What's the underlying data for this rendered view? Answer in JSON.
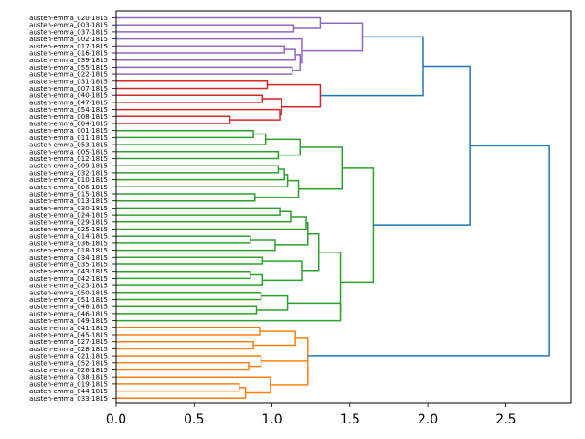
{
  "chart_data": {
    "type": "dendrogram",
    "orientation": "left",
    "title": "",
    "xlabel": "",
    "ylabel": "",
    "xlim": [
      0,
      2.92
    ],
    "xticks": [
      0.0,
      0.5,
      1.0,
      1.5,
      2.0,
      2.5
    ],
    "xtick_labels": [
      "0.0",
      "0.5",
      "1.0",
      "1.5",
      "2.0",
      "2.5"
    ],
    "colors": {
      "purple": "#9467bd",
      "red": "#d62728",
      "green": "#2ca02c",
      "orange": "#ff7f0e",
      "blue": "#1f77b4"
    },
    "leaves": [
      "austen-emma_020-1815",
      "austen-emma_003-1815",
      "austen-emma_037-1815",
      "austen-emma_002-1815",
      "austen-emma_017-1815",
      "austen-emma_016-1815",
      "austen-emma_039-1815",
      "austen-emma_055-1815",
      "austen-emma_022-1815",
      "austen-emma_031-1815",
      "austen-emma_007-1815",
      "austen-emma_040-1815",
      "austen-emma_047-1815",
      "austen-emma_054-1815",
      "austen-emma_008-1815",
      "austen-emma_004-1815",
      "austen-emma_001-1815",
      "austen-emma_011-1815",
      "austen-emma_053-1815",
      "austen-emma_005-1815",
      "austen-emma_012-1815",
      "austen-emma_009-1815",
      "austen-emma_032-1815",
      "austen-emma_010-1815",
      "austen-emma_006-1815",
      "austen-emma_015-1815",
      "austen-emma_013-1815",
      "austen-emma_030-1815",
      "austen-emma_024-1815",
      "austen-emma_029-1815",
      "austen-emma_025-1815",
      "austen-emma_014-1815",
      "austen-emma_036-1815",
      "austen-emma_018-1815",
      "austen-emma_034-1815",
      "austen-emma_035-1815",
      "austen-emma_043-1815",
      "austen-emma_042-1815",
      "austen-emma_023-1815",
      "austen-emma_050-1815",
      "austen-emma_051-1815",
      "austen-emma_048-1815",
      "austen-emma_046-1815",
      "austen-emma_049-1815",
      "austen-emma_041-1815",
      "austen-emma_045-1815",
      "austen-emma_027-1815",
      "austen-emma_028-1815",
      "austen-emma_021-1815",
      "austen-emma_052-1815",
      "austen-emma_026-1815",
      "austen-emma_038-1815",
      "austen-emma_019-1815",
      "austen-emma_044-1815",
      "austen-emma_033-1815"
    ],
    "merges": [
      {
        "a": "L1",
        "b": "L2",
        "h": 1.14,
        "c": "purple"
      },
      {
        "a": "L0",
        "b": "M0",
        "h": 1.31,
        "c": "purple"
      },
      {
        "a": "L4",
        "b": "L5",
        "h": 1.08,
        "c": "purple"
      },
      {
        "a": "M2",
        "b": "L6",
        "h": 1.15,
        "c": "purple"
      },
      {
        "a": "L7",
        "b": "L8",
        "h": 1.13,
        "c": "purple"
      },
      {
        "a": "M3",
        "b": "M4",
        "h": 1.18,
        "c": "purple"
      },
      {
        "a": "L3",
        "b": "M5",
        "h": 1.19,
        "c": "purple"
      },
      {
        "a": "M1",
        "b": "M6",
        "h": 1.58,
        "c": "purple"
      },
      {
        "a": "L9",
        "b": "L10",
        "h": 0.97,
        "c": "red"
      },
      {
        "a": "L11",
        "b": "L12",
        "h": 0.94,
        "c": "red"
      },
      {
        "a": "L14",
        "b": "L15",
        "h": 0.73,
        "c": "red"
      },
      {
        "a": "L13",
        "b": "M10",
        "h": 1.05,
        "c": "red"
      },
      {
        "a": "M9",
        "b": "M11",
        "h": 1.06,
        "c": "red"
      },
      {
        "a": "M8",
        "b": "M12",
        "h": 1.31,
        "c": "red"
      },
      {
        "a": "M7",
        "b": "M13",
        "h": 1.97,
        "c": "blue"
      },
      {
        "a": "L16",
        "b": "L17",
        "h": 0.88,
        "c": "green"
      },
      {
        "a": "M15",
        "b": "L18",
        "h": 0.96,
        "c": "green"
      },
      {
        "a": "L19",
        "b": "L20",
        "h": 1.04,
        "c": "green"
      },
      {
        "a": "M16",
        "b": "M17",
        "h": 1.18,
        "c": "green"
      },
      {
        "a": "L21",
        "b": "L22",
        "h": 1.04,
        "c": "green"
      },
      {
        "a": "M19",
        "b": "L23",
        "h": 1.08,
        "c": "green"
      },
      {
        "a": "M20",
        "b": "L24",
        "h": 1.1,
        "c": "green"
      },
      {
        "a": "L25",
        "b": "L26",
        "h": 0.89,
        "c": "green"
      },
      {
        "a": "M21",
        "b": "M22",
        "h": 1.17,
        "c": "green"
      },
      {
        "a": "M18",
        "b": "M23",
        "h": 1.45,
        "c": "green"
      },
      {
        "a": "L27",
        "b": "L28",
        "h": 1.05,
        "c": "green"
      },
      {
        "a": "M25",
        "b": "L29",
        "h": 1.12,
        "c": "green"
      },
      {
        "a": "M26",
        "b": "L30",
        "h": 1.22,
        "c": "green"
      },
      {
        "a": "L31",
        "b": "L32",
        "h": 0.86,
        "c": "green"
      },
      {
        "a": "M28",
        "b": "L33",
        "h": 1.02,
        "c": "green"
      },
      {
        "a": "M27",
        "b": "M29",
        "h": 1.23,
        "c": "green"
      },
      {
        "a": "L34",
        "b": "L35",
        "h": 0.94,
        "c": "green"
      },
      {
        "a": "L36",
        "b": "L37",
        "h": 0.86,
        "c": "green"
      },
      {
        "a": "M32",
        "b": "L38",
        "h": 0.94,
        "c": "green"
      },
      {
        "a": "M31",
        "b": "M33",
        "h": 1.19,
        "c": "green"
      },
      {
        "a": "M30",
        "b": "M34",
        "h": 1.3,
        "c": "green"
      },
      {
        "a": "L39",
        "b": "L40",
        "h": 0.93,
        "c": "green"
      },
      {
        "a": "L41",
        "b": "L42",
        "h": 0.9,
        "c": "green"
      },
      {
        "a": "M36",
        "b": "M37",
        "h": 1.1,
        "c": "green"
      },
      {
        "a": "M38",
        "b": "L43",
        "h": 1.44,
        "c": "green"
      },
      {
        "a": "M35",
        "b": "M39",
        "h": 1.44,
        "c": "green"
      },
      {
        "a": "M24",
        "b": "M40",
        "h": 1.65,
        "c": "green"
      },
      {
        "a": "M14",
        "b": "M41",
        "h": 2.27,
        "c": "blue"
      },
      {
        "a": "L44",
        "b": "L45",
        "h": 0.92,
        "c": "orange"
      },
      {
        "a": "L46",
        "b": "L47",
        "h": 0.88,
        "c": "orange"
      },
      {
        "a": "M43",
        "b": "M44",
        "h": 1.15,
        "c": "orange"
      },
      {
        "a": "L49",
        "b": "L50",
        "h": 0.85,
        "c": "orange"
      },
      {
        "a": "L48",
        "b": "M46",
        "h": 0.93,
        "c": "orange"
      },
      {
        "a": "L52",
        "b": "L53",
        "h": 0.79,
        "c": "orange"
      },
      {
        "a": "M48",
        "b": "L54",
        "h": 0.83,
        "c": "orange"
      },
      {
        "a": "L51",
        "b": "M49",
        "h": 0.99,
        "c": "orange"
      },
      {
        "a": "M47",
        "b": "M50",
        "h": 1.23,
        "c": "orange"
      },
      {
        "a": "M45",
        "b": "M51",
        "h": 1.23,
        "c": "orange"
      },
      {
        "a": "M42",
        "b": "M52",
        "h": 2.78,
        "c": "blue"
      }
    ]
  }
}
